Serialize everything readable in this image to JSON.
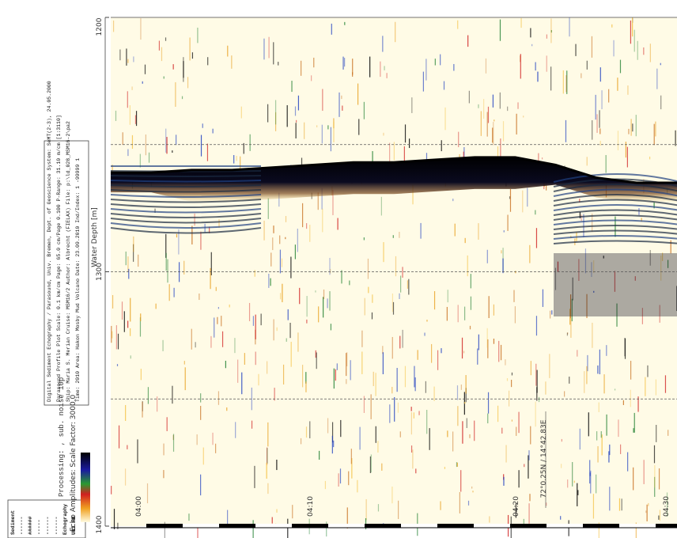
{
  "chart_data": {
    "type": "echogram",
    "y_label": "Water Depth [m]",
    "ylim": [
      1200,
      1400
    ],
    "yticks": [
      1200,
      1300,
      1400
    ],
    "grid_lines": [
      1250,
      1300,
      1350
    ],
    "xticks": [
      "04:00",
      "04:10",
      "04:20",
      "04:30"
    ],
    "position_label": "72°0.25N / 14°42.83E",
    "seafloor_depth": [
      1261,
      1261,
      1260,
      1260,
      1259,
      1258,
      1257,
      1257,
      1256,
      1255,
      1255,
      1258,
      1263,
      1265,
      1265
    ],
    "color": "#000000"
  },
  "info": {
    "lines": [
      "Digital Sediment Echography / Parasound, Univ. Bremen, Dept. of Geoscience      System: SeMT(2-3), 24.05.2000",
      "Parasound Profile Plot        Scale: 0.1 km/cm  Page: 65.0 cm/Page    0.100 P-Range: 31.10 m/cm [1:3110]",
      "Ship:  Maria S. Merian   Cruise: MSM16/2    Author: Albrecht (FIELAX)      File: p:\\ld_028_MSM16-2\\pa2",
      "Time:  2010              Area: Hakon Mosby Mud Volcano   Date: 23.09.2010    Ind/Index:  1  -99999  1"
    ],
    "processing": "Processing: , sub. noise 10p",
    "amplitude_label": "Echo Amplitudes: Scale Factor: 3000.0",
    "logo_lines": [
      "Sediment",
      "------",
      "######",
      "-----",
      "------",
      "------",
      "Echography",
      "UNI HB"
    ]
  }
}
